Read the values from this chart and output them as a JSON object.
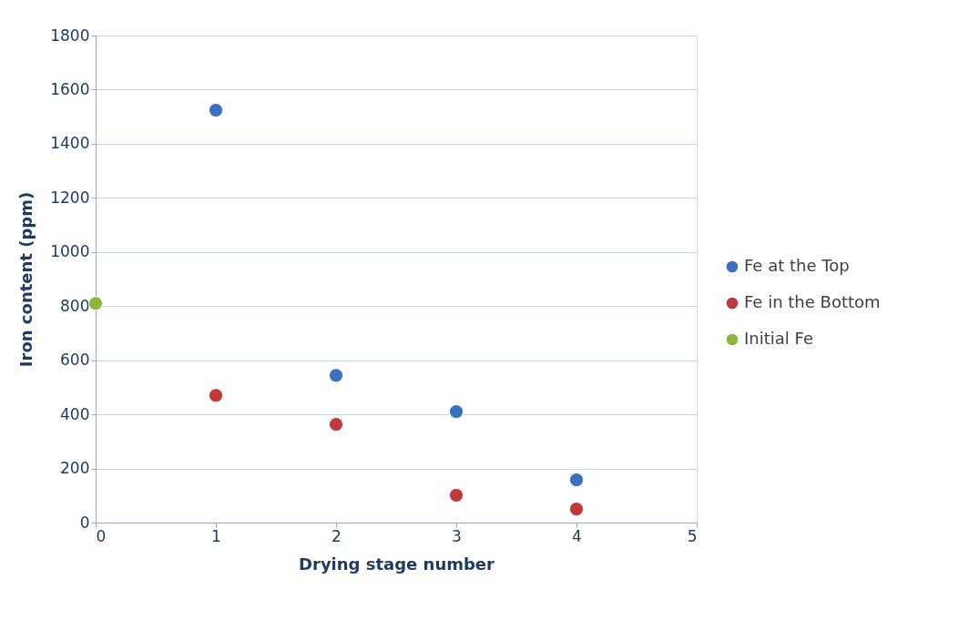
{
  "chart_data": {
    "type": "scatter",
    "xlabel": "Drying stage number",
    "ylabel": "Iron content (ppm)",
    "xlim": [
      0,
      5
    ],
    "xticks": [
      0,
      1,
      2,
      3,
      4,
      5
    ],
    "ylim": [
      0,
      1800
    ],
    "yticks": [
      0,
      200,
      400,
      600,
      800,
      1000,
      1200,
      1400,
      1600,
      1800
    ],
    "grid": "y",
    "legend": "right",
    "marker": "circle",
    "series": [
      {
        "name": "Fe at the Top",
        "color": "#3a70c0",
        "x": [
          1,
          2,
          3,
          4
        ],
        "values": [
          1524,
          544,
          410,
          158
        ]
      },
      {
        "name": "Fe in the Bottom",
        "color": "#c0393b",
        "x": [
          1,
          2,
          3,
          4
        ],
        "values": [
          470,
          363,
          101,
          50
        ]
      },
      {
        "name": "Initial Fe",
        "color": "#8bb83b",
        "x": [
          0
        ],
        "values": [
          810
        ]
      }
    ]
  }
}
